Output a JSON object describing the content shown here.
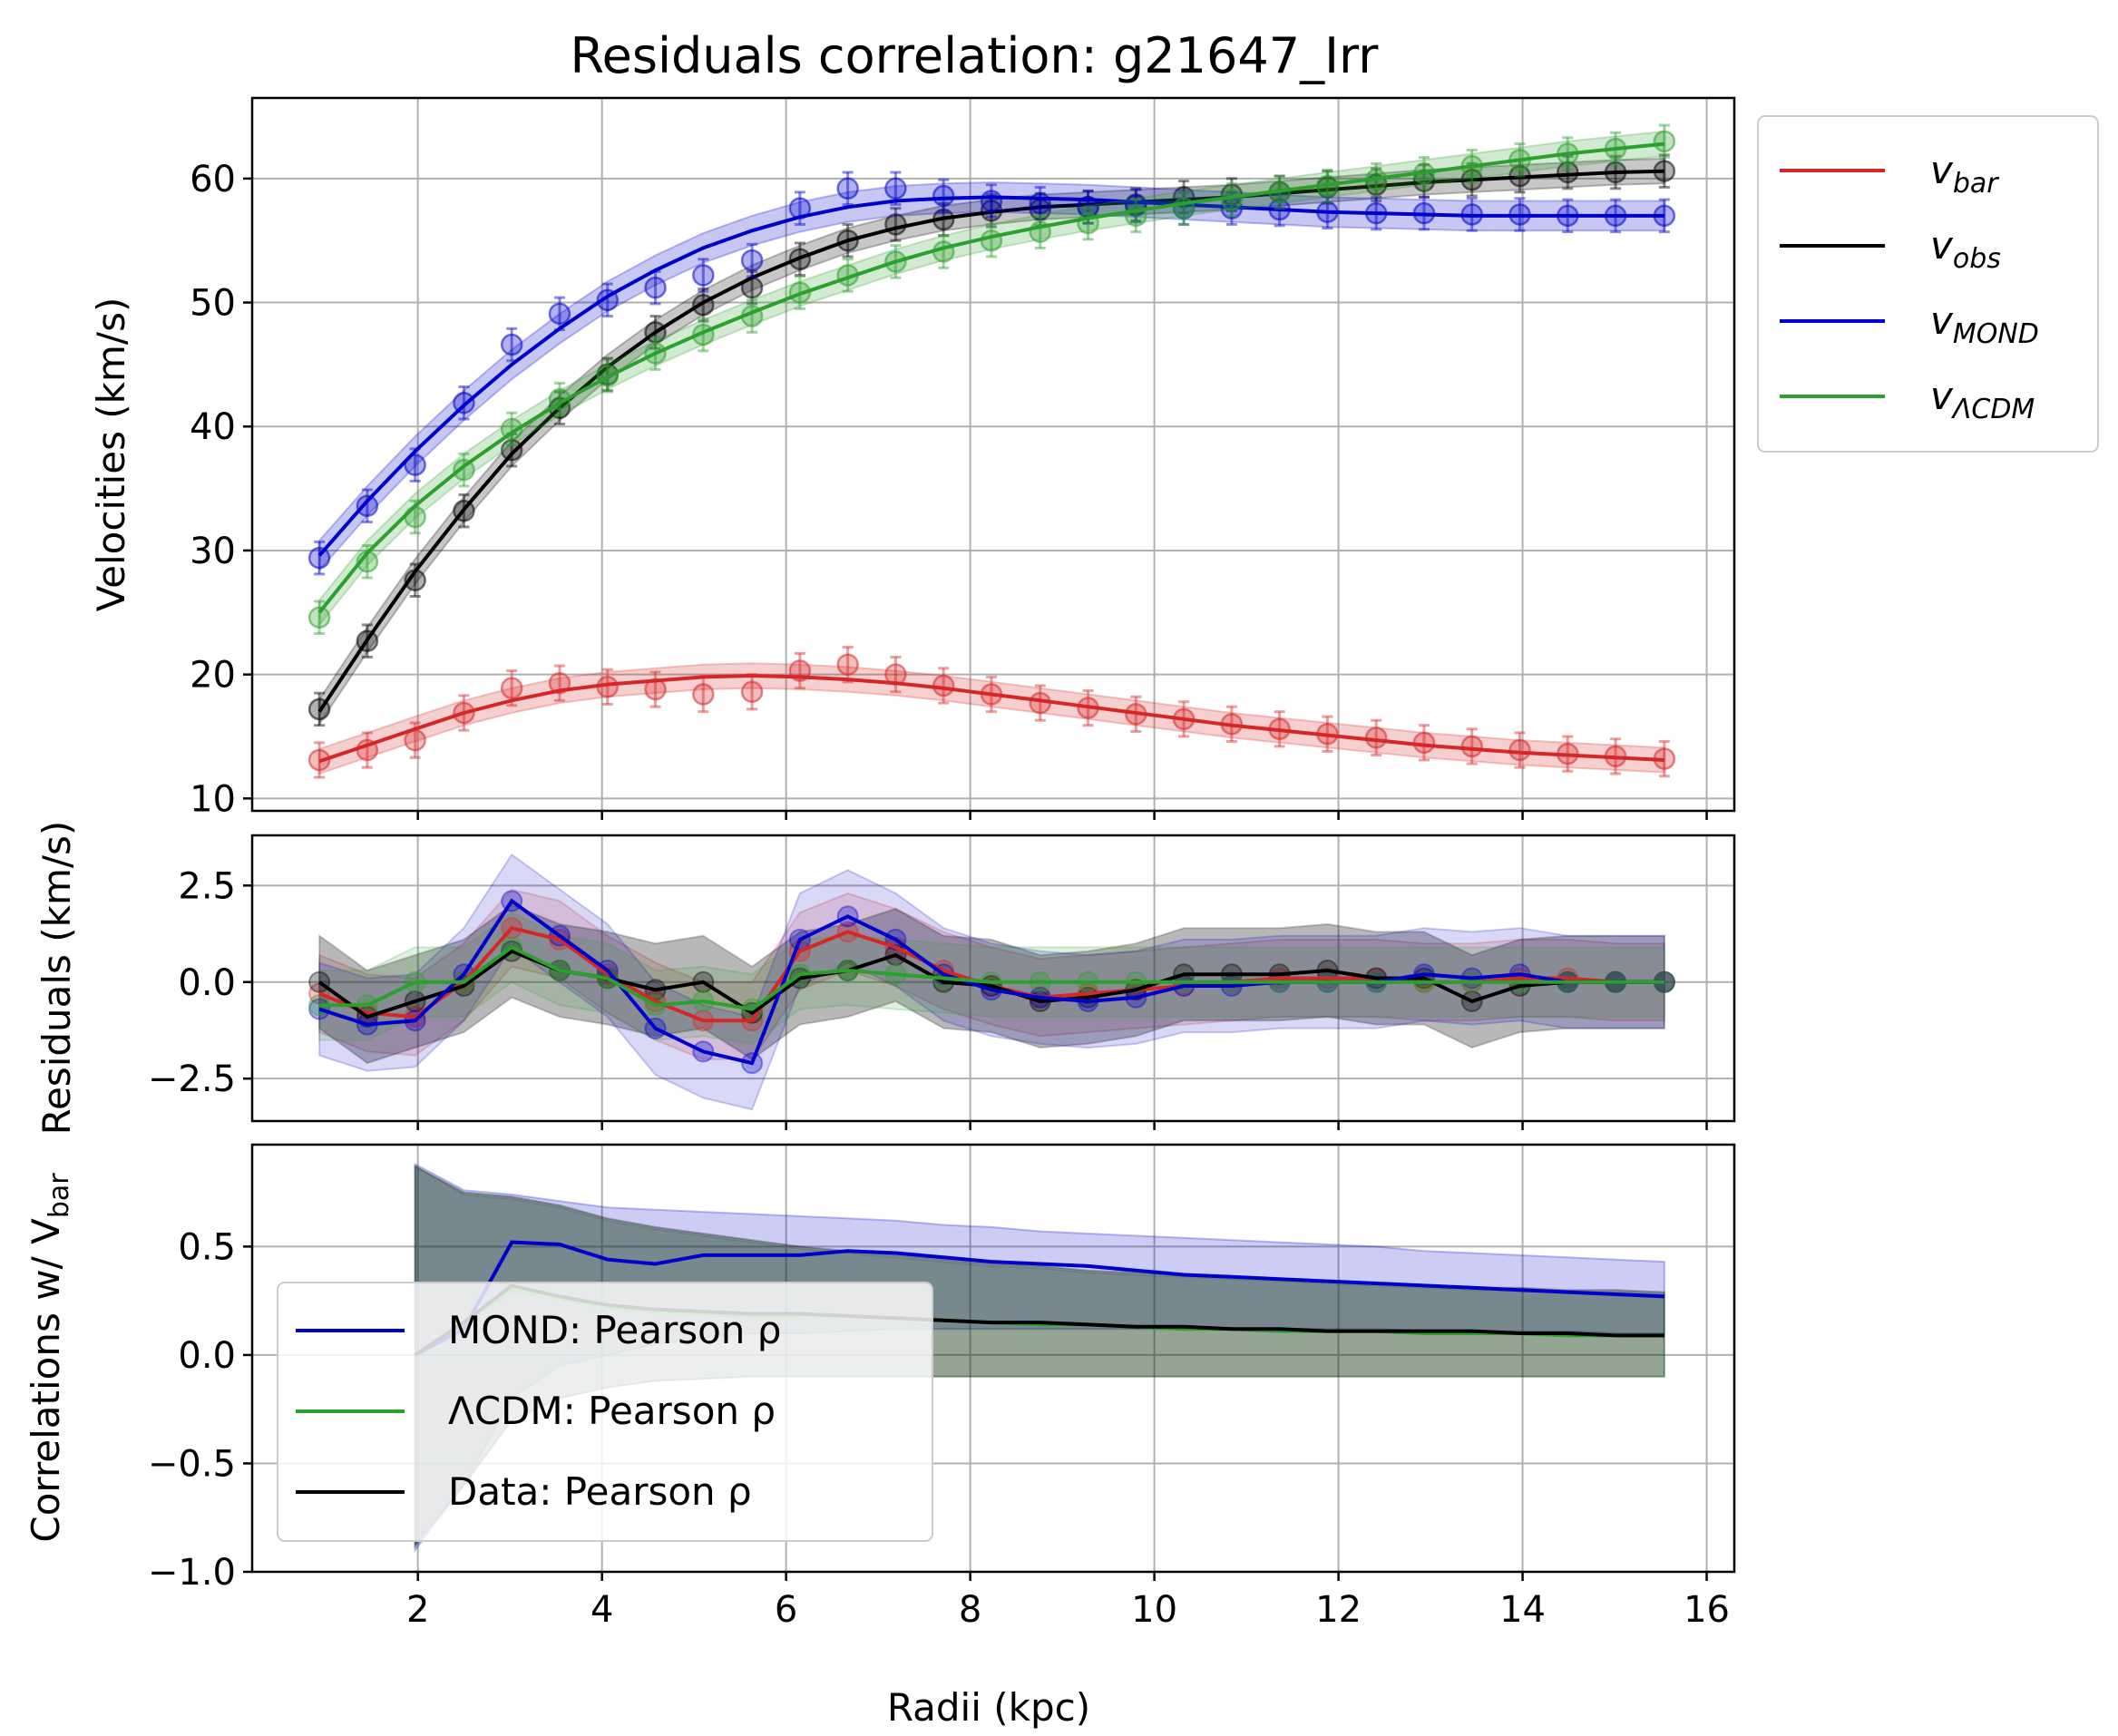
{
  "chart_data": {
    "title": "Residuals correlation: g21647_Irr",
    "xlabel": "Radii (kpc)",
    "x": [
      0.93,
      1.45,
      1.97,
      2.5,
      3.02,
      3.54,
      4.06,
      4.58,
      5.1,
      5.63,
      6.15,
      6.67,
      7.19,
      7.71,
      8.23,
      8.76,
      9.28,
      9.8,
      10.32,
      10.84,
      11.36,
      11.88,
      12.41,
      12.93,
      13.45,
      13.97,
      14.49,
      15.01,
      15.54
    ],
    "xlim": [
      0.2,
      16.3
    ],
    "xticks": [
      2,
      4,
      6,
      8,
      10,
      12,
      14,
      16
    ],
    "panels": [
      {
        "id": "velocities",
        "type": "line",
        "ylabel": "Velocities (km/s)",
        "ylim": [
          9,
          66.5
        ],
        "yticks": [
          10,
          20,
          30,
          40,
          50,
          60
        ],
        "legend_position": "outside-right",
        "series": [
          {
            "name": "v",
            "sub": "bar",
            "color": "#d62728",
            "err": 1.4,
            "band": 1.0,
            "line": [
              13.0,
              14.3,
              15.6,
              16.9,
              17.9,
              18.7,
              19.2,
              19.5,
              19.8,
              19.9,
              19.8,
              19.6,
              19.3,
              18.9,
              18.4,
              17.9,
              17.4,
              16.9,
              16.4,
              15.9,
              15.5,
              15.1,
              14.7,
              14.3,
              14.0,
              13.7,
              13.5,
              13.3,
              13.1
            ],
            "points": [
              13.1,
              13.9,
              14.7,
              16.9,
              18.9,
              19.3,
              19.0,
              18.8,
              18.4,
              18.6,
              20.3,
              20.8,
              20.0,
              19.1,
              18.4,
              17.7,
              17.3,
              16.8,
              16.4,
              16.0,
              15.6,
              15.2,
              14.9,
              14.5,
              14.2,
              13.9,
              13.6,
              13.4,
              13.2
            ]
          },
          {
            "name": "v",
            "sub": "obs",
            "color": "#000000",
            "err": 1.3,
            "band": 1.0,
            "line": [
              17.0,
              22.8,
              28.3,
              33.3,
              37.8,
              41.5,
              44.8,
              47.6,
              50.0,
              52.0,
              53.6,
              55.0,
              56.0,
              56.8,
              57.3,
              57.7,
              57.9,
              58.1,
              58.3,
              58.5,
              58.8,
              59.1,
              59.4,
              59.7,
              59.9,
              60.1,
              60.3,
              60.5,
              60.6
            ],
            "points": [
              17.2,
              22.7,
              27.6,
              33.2,
              38.1,
              41.5,
              44.2,
              47.6,
              49.8,
              51.2,
              53.5,
              55.0,
              56.3,
              56.7,
              57.4,
              57.5,
              57.7,
              57.9,
              58.5,
              58.7,
              58.9,
              59.3,
              59.5,
              59.8,
              59.9,
              60.2,
              60.5,
              60.5,
              60.6
            ]
          },
          {
            "name": "v",
            "sub": "MOND",
            "color": "#0000cc",
            "err": 1.3,
            "band": 1.2,
            "line": [
              29.6,
              34.0,
              38.0,
              41.7,
              45.0,
              47.9,
              50.5,
              52.6,
              54.4,
              55.8,
              56.9,
              57.7,
              58.2,
              58.4,
              58.5,
              58.4,
              58.3,
              58.1,
              57.9,
              57.7,
              57.5,
              57.3,
              57.2,
              57.1,
              57.0,
              57.0,
              57.0,
              57.0,
              57.0
            ],
            "points": [
              29.4,
              33.6,
              36.9,
              41.9,
              46.6,
              49.1,
              50.2,
              51.2,
              52.2,
              53.4,
              57.6,
              59.2,
              59.2,
              58.6,
              58.2,
              58.0,
              57.7,
              57.8,
              57.6,
              57.6,
              57.5,
              57.3,
              57.2,
              57.2,
              57.1,
              57.1,
              57.0,
              57.0,
              57.0
            ]
          },
          {
            "name": "v",
            "sub": "ΛCDM",
            "color": "#2ca02c",
            "err": 1.3,
            "band": 1.0,
            "line": [
              25.0,
              29.8,
              33.6,
              36.8,
              39.5,
              41.9,
              44.0,
              45.9,
              47.6,
              49.2,
              50.7,
              52.0,
              53.3,
              54.4,
              55.3,
              56.1,
              56.8,
              57.4,
              58.0,
              58.5,
              59.0,
              59.5,
              60.0,
              60.5,
              61.0,
              61.5,
              62.0,
              62.4,
              62.8
            ],
            "points": [
              24.6,
              29.1,
              32.7,
              36.5,
              39.8,
              42.2,
              44.1,
              45.9,
              47.4,
              48.9,
              50.8,
              52.2,
              53.3,
              54.1,
              55.0,
              55.7,
              56.4,
              57.0,
              57.6,
              58.3,
              58.9,
              59.4,
              59.9,
              60.4,
              61.0,
              61.5,
              62.0,
              62.4,
              63.0
            ]
          }
        ]
      },
      {
        "id": "residuals",
        "type": "line",
        "ylabel": "Residuals (km/s)",
        "ylim": [
          -3.6,
          3.8
        ],
        "yticks": [
          -2.5,
          0.0,
          2.5
        ],
        "series": [
          {
            "name": "bar",
            "color": "#d62728",
            "band": 1.0,
            "values": [
              -0.3,
              -0.8,
              -0.9,
              0.0,
              1.4,
              1.1,
              0.2,
              -0.5,
              -1.0,
              -1.0,
              0.8,
              1.3,
              0.9,
              0.3,
              -0.1,
              -0.4,
              -0.3,
              -0.2,
              -0.1,
              0.0,
              0.1,
              0.1,
              0.1,
              0.0,
              0.0,
              0.1,
              0.1,
              0.0,
              0.0
            ]
          },
          {
            "name": "obs",
            "color": "#000000",
            "band": 1.2,
            "values": [
              0.0,
              -0.9,
              -0.5,
              -0.1,
              0.8,
              0.3,
              0.1,
              -0.2,
              0.0,
              -0.8,
              0.1,
              0.3,
              0.7,
              0.0,
              -0.1,
              -0.5,
              -0.4,
              -0.2,
              0.2,
              0.2,
              0.2,
              0.3,
              0.1,
              0.1,
              -0.5,
              -0.1,
              0.0,
              0.0,
              0.0
            ]
          },
          {
            "name": "MOND",
            "color": "#0000cc",
            "band": 1.2,
            "values": [
              -0.7,
              -1.1,
              -1.0,
              0.2,
              2.1,
              1.2,
              0.3,
              -1.2,
              -1.8,
              -2.1,
              1.1,
              1.7,
              1.1,
              0.2,
              -0.2,
              -0.4,
              -0.5,
              -0.4,
              -0.1,
              -0.1,
              0.0,
              0.0,
              0.0,
              0.2,
              0.1,
              0.2,
              0.0,
              0.0,
              0.0
            ]
          },
          {
            "name": "ΛCDM",
            "color": "#2ca02c",
            "band": 0.9,
            "values": [
              -0.6,
              -0.6,
              0.0,
              0.0,
              0.9,
              0.3,
              0.1,
              -0.6,
              -0.5,
              -0.7,
              0.2,
              0.3,
              0.2,
              0.1,
              0.0,
              0.0,
              0.0,
              0.0,
              0.0,
              0.0,
              0.0,
              0.0,
              0.0,
              0.0,
              0.0,
              0.0,
              0.0,
              0.0,
              0.0
            ]
          }
        ]
      },
      {
        "id": "correlations",
        "type": "area",
        "ylabel": "Correlations w/ V",
        "ylabel_suffix": "bar",
        "ylim": [
          -1.0,
          0.97
        ],
        "yticks": [
          -1.0,
          -0.5,
          0.0,
          0.5
        ],
        "legend_position": "lower-left",
        "series": [
          {
            "name": "MOND: Pearson ρ",
            "color": "#0000cc",
            "x": [
              1.97,
              2.5,
              3.02,
              3.54,
              4.06,
              4.58,
              5.1,
              5.63,
              6.15,
              6.67,
              7.19,
              7.71,
              8.23,
              8.76,
              9.28,
              9.8,
              10.32,
              10.84,
              11.36,
              11.88,
              12.41,
              12.93,
              13.45,
              13.97,
              14.49,
              15.01,
              15.54
            ],
            "values": [
              0.0,
              0.12,
              0.52,
              0.51,
              0.44,
              0.42,
              0.46,
              0.46,
              0.46,
              0.48,
              0.47,
              0.45,
              0.43,
              0.42,
              0.41,
              0.39,
              0.37,
              0.36,
              0.35,
              0.34,
              0.33,
              0.32,
              0.31,
              0.3,
              0.29,
              0.28,
              0.27
            ],
            "upper": [
              0.88,
              0.76,
              0.74,
              0.71,
              0.68,
              0.67,
              0.66,
              0.65,
              0.64,
              0.63,
              0.62,
              0.6,
              0.59,
              0.57,
              0.56,
              0.55,
              0.54,
              0.53,
              0.52,
              0.51,
              0.5,
              0.48,
              0.47,
              0.46,
              0.45,
              0.44,
              0.43
            ],
            "lower": [
              -0.9,
              -0.6,
              -0.2,
              -0.05,
              0.0,
              0.05,
              0.08,
              0.1,
              0.1,
              0.11,
              0.12,
              0.12,
              0.12,
              0.12,
              0.12,
              0.12,
              0.12,
              0.12,
              0.12,
              0.12,
              0.12,
              0.11,
              0.11,
              0.11,
              0.11,
              0.1,
              0.1
            ]
          },
          {
            "name": "ΛCDM: Pearson ρ",
            "color": "#2ca02c",
            "x": [
              1.97,
              2.5,
              3.02,
              3.54,
              4.06,
              4.58,
              5.1,
              5.63,
              6.15,
              6.67,
              7.19,
              7.71,
              8.23,
              8.76,
              9.28,
              9.8,
              10.32,
              10.84,
              11.36,
              11.88,
              12.41,
              12.93,
              13.45,
              13.97,
              14.49,
              15.01,
              15.54
            ],
            "values": [
              0.0,
              0.15,
              0.3,
              0.26,
              0.22,
              0.2,
              0.19,
              0.18,
              0.18,
              0.18,
              0.17,
              0.16,
              0.15,
              0.14,
              0.14,
              0.13,
              0.12,
              0.12,
              0.11,
              0.11,
              0.11,
              0.1,
              0.1,
              0.1,
              0.09,
              0.09,
              0.09
            ],
            "upper": [
              0.87,
              0.74,
              0.72,
              0.68,
              0.62,
              0.58,
              0.55,
              0.52,
              0.49,
              0.47,
              0.45,
              0.43,
              0.41,
              0.4,
              0.38,
              0.37,
              0.36,
              0.35,
              0.34,
              0.33,
              0.32,
              0.31,
              0.3,
              0.3,
              0.29,
              0.29,
              0.28
            ],
            "lower": [
              -0.88,
              -0.6,
              -0.3,
              -0.2,
              -0.15,
              -0.12,
              -0.11,
              -0.1,
              -0.1,
              -0.1,
              -0.1,
              -0.1,
              -0.1,
              -0.1,
              -0.1,
              -0.1,
              -0.1,
              -0.1,
              -0.1,
              -0.1,
              -0.1,
              -0.1,
              -0.1,
              -0.1,
              -0.1,
              -0.1,
              -0.1
            ]
          },
          {
            "name": "Data: Pearson ρ",
            "color": "#000000",
            "x": [
              1.97,
              2.5,
              3.02,
              3.54,
              4.06,
              4.58,
              5.1,
              5.63,
              6.15,
              6.67,
              7.19,
              7.71,
              8.23,
              8.76,
              9.28,
              9.8,
              10.32,
              10.84,
              11.36,
              11.88,
              12.41,
              12.93,
              13.45,
              13.97,
              14.49,
              15.01,
              15.54
            ],
            "values": [
              0.0,
              0.15,
              0.32,
              0.27,
              0.23,
              0.21,
              0.2,
              0.19,
              0.19,
              0.18,
              0.17,
              0.16,
              0.15,
              0.15,
              0.14,
              0.13,
              0.13,
              0.12,
              0.12,
              0.11,
              0.11,
              0.11,
              0.11,
              0.1,
              0.1,
              0.09,
              0.09
            ],
            "upper": [
              0.87,
              0.75,
              0.73,
              0.69,
              0.63,
              0.59,
              0.56,
              0.53,
              0.5,
              0.48,
              0.46,
              0.44,
              0.42,
              0.41,
              0.39,
              0.38,
              0.37,
              0.36,
              0.35,
              0.34,
              0.33,
              0.32,
              0.31,
              0.31,
              0.3,
              0.3,
              0.29
            ],
            "lower": [
              -0.88,
              -0.6,
              -0.3,
              -0.2,
              -0.15,
              -0.12,
              -0.11,
              -0.1,
              -0.1,
              -0.1,
              -0.1,
              -0.1,
              -0.1,
              -0.1,
              -0.1,
              -0.1,
              -0.1,
              -0.1,
              -0.1,
              -0.1,
              -0.1,
              -0.1,
              -0.1,
              -0.1,
              -0.1,
              -0.1,
              -0.1
            ]
          }
        ]
      }
    ],
    "grid": true
  }
}
